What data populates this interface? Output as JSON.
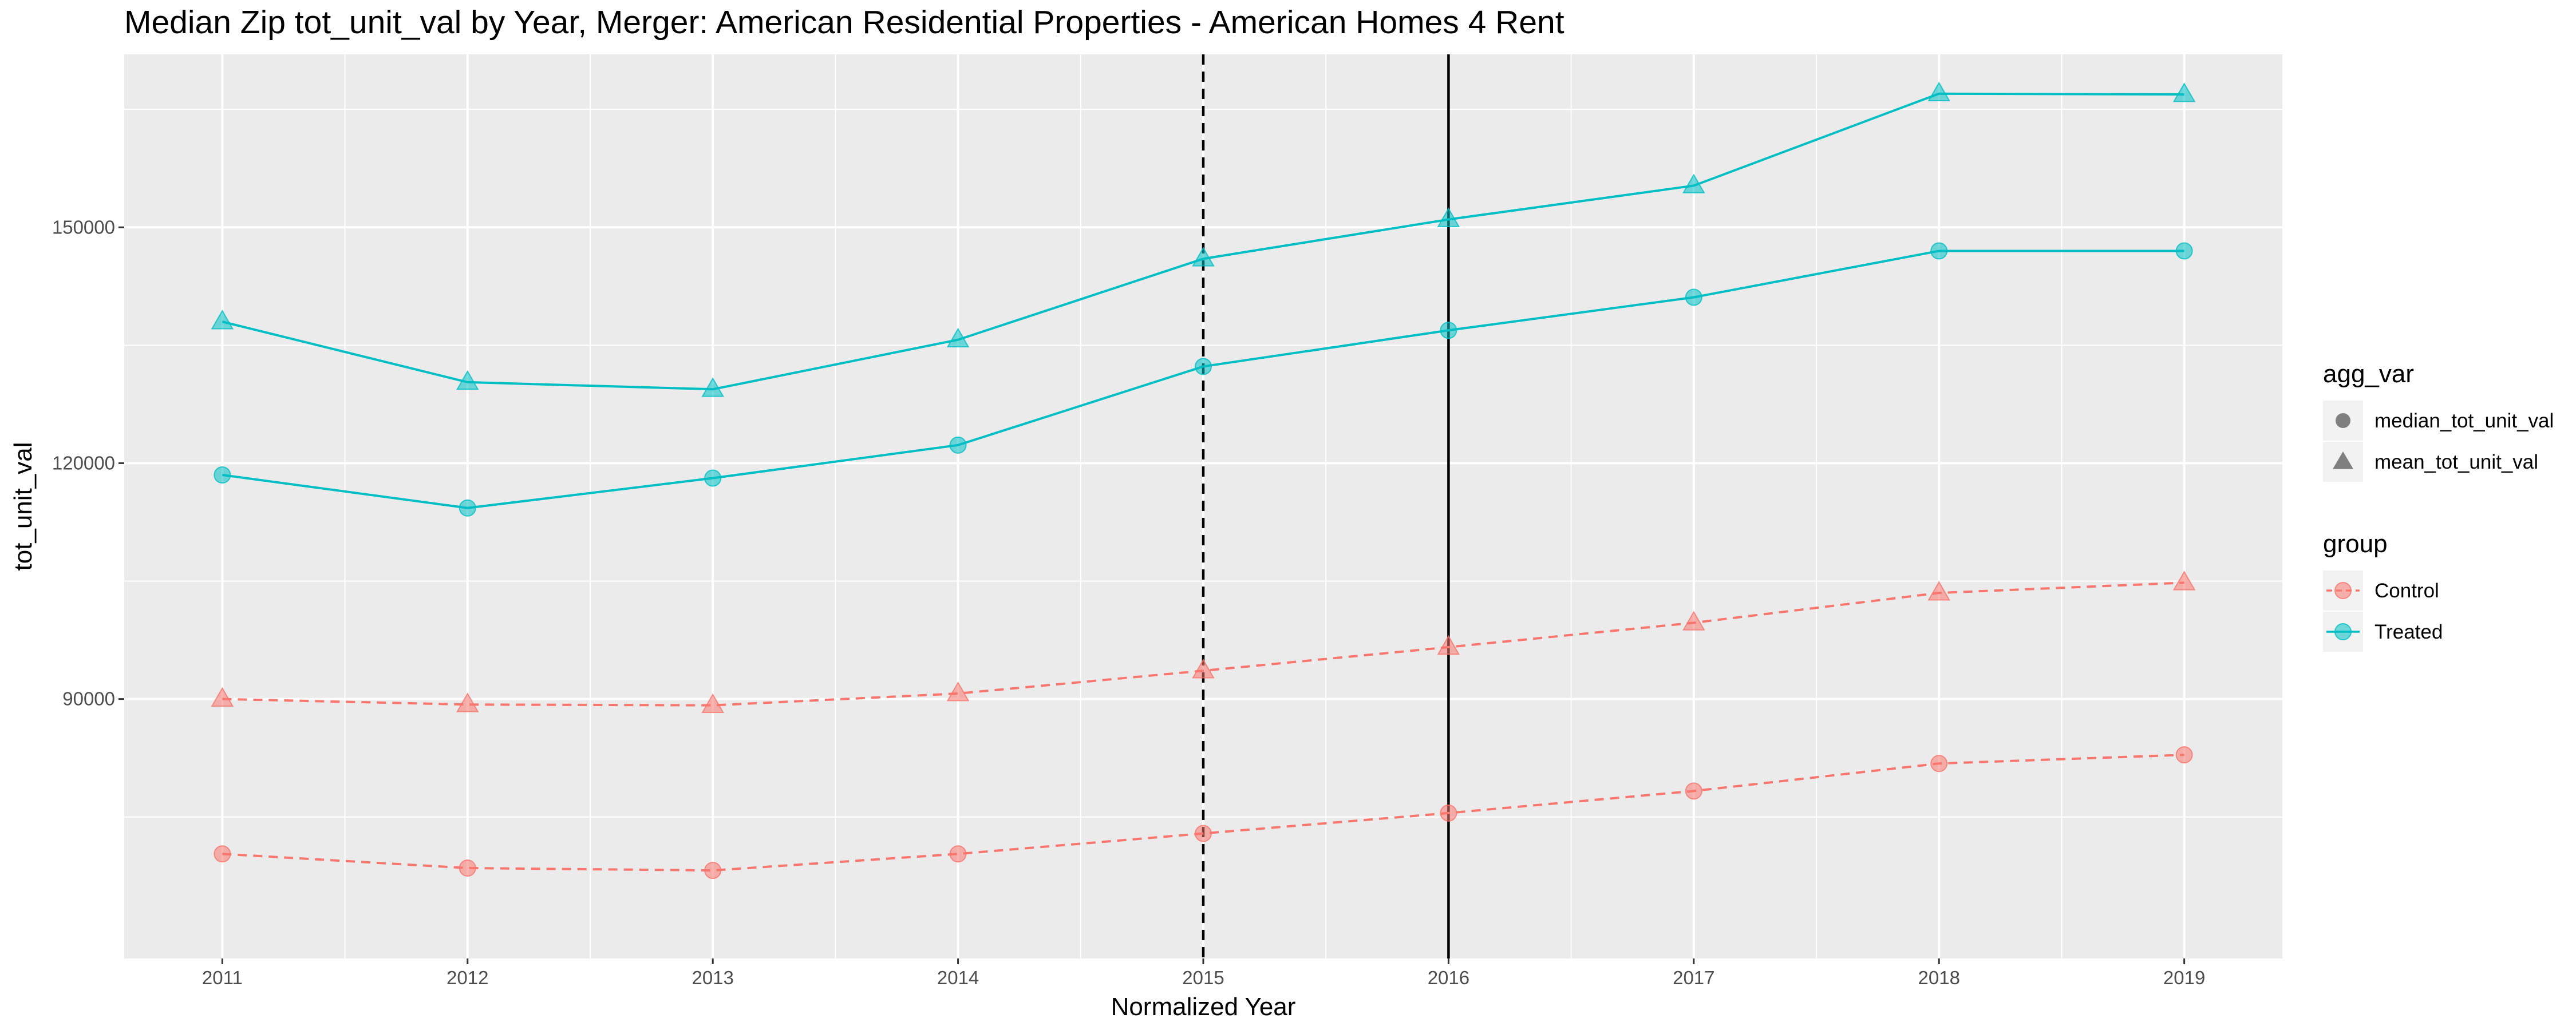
{
  "chart_data": {
    "type": "line",
    "title": "Median Zip tot_unit_val by Year, Merger: American Residential Properties - American Homes 4 Rent",
    "xlabel": "Normalized Year",
    "ylabel": "tot_unit_val",
    "x": [
      2011,
      2012,
      2013,
      2014,
      2015,
      2016,
      2017,
      2018,
      2019
    ],
    "xlim": [
      2010.6,
      2019.4
    ],
    "ylim": [
      57000,
      172000
    ],
    "yticks": [
      90000,
      120000,
      150000
    ],
    "ytick_labels": [
      "90000",
      "120000",
      "150000"
    ],
    "xtick_labels": [
      "2011",
      "2012",
      "2013",
      "2014",
      "2015",
      "2016",
      "2017",
      "2018",
      "2019"
    ],
    "vlines": [
      {
        "x": 2015,
        "style": "dashed"
      },
      {
        "x": 2016,
        "style": "solid"
      }
    ],
    "grid": true,
    "background": "#ebebeb",
    "series": [
      {
        "group": "Treated",
        "agg_var": "mean_tot_unit_val",
        "color": "#00bfc4",
        "line": "solid",
        "marker": "triangle",
        "values": [
          138000,
          130300,
          129400,
          135700,
          146000,
          151000,
          155300,
          167000,
          166900
        ]
      },
      {
        "group": "Treated",
        "agg_var": "median_tot_unit_val",
        "color": "#00bfc4",
        "line": "solid",
        "marker": "circle",
        "values": [
          118500,
          114300,
          118100,
          122300,
          132300,
          136900,
          141100,
          147000,
          147000
        ]
      },
      {
        "group": "Control",
        "agg_var": "mean_tot_unit_val",
        "color": "#f8766d",
        "line": "dashed",
        "marker": "triangle",
        "values": [
          90000,
          89300,
          89200,
          90700,
          93600,
          96600,
          99700,
          103500,
          104800
        ]
      },
      {
        "group": "Control",
        "agg_var": "median_tot_unit_val",
        "color": "#f8766d",
        "line": "dashed",
        "marker": "circle",
        "values": [
          70300,
          68500,
          68200,
          70300,
          72900,
          75500,
          78300,
          81800,
          82900
        ]
      }
    ],
    "legend": {
      "placement": "right",
      "agg_var_title": "agg_var",
      "agg_var_items": [
        "median_tot_unit_val",
        "mean_tot_unit_val"
      ],
      "group_title": "group",
      "group_items": [
        {
          "label": "Control",
          "color": "#f8766d"
        },
        {
          "label": "Treated",
          "color": "#00bfc4"
        }
      ]
    }
  }
}
